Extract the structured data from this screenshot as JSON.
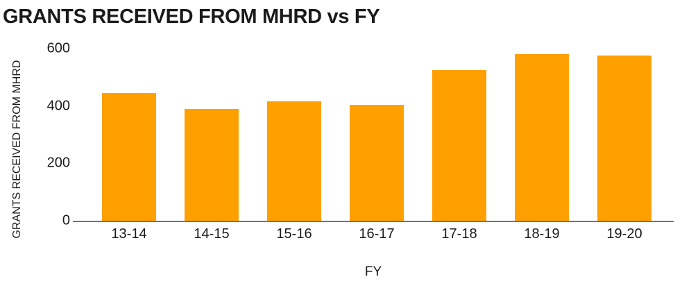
{
  "chart_data": {
    "type": "bar",
    "title": "GRANTS RECEIVED FROM MHRD vs FY",
    "xlabel": "FY",
    "ylabel": "GRANTS RECEIVED FROM MHRD",
    "categories": [
      "13-14",
      "14-15",
      "15-16",
      "16-17",
      "17-18",
      "18-19",
      "19-20"
    ],
    "values": [
      445,
      390,
      415,
      405,
      525,
      580,
      575
    ],
    "ylim": [
      0,
      600
    ],
    "yticks": [
      600,
      400,
      200,
      0
    ],
    "grid": false,
    "legend": "none",
    "colors": {
      "bar": "#FFA000",
      "axis_line": "#737373",
      "text": "#1a1a1a",
      "background": "#ffffff"
    }
  }
}
